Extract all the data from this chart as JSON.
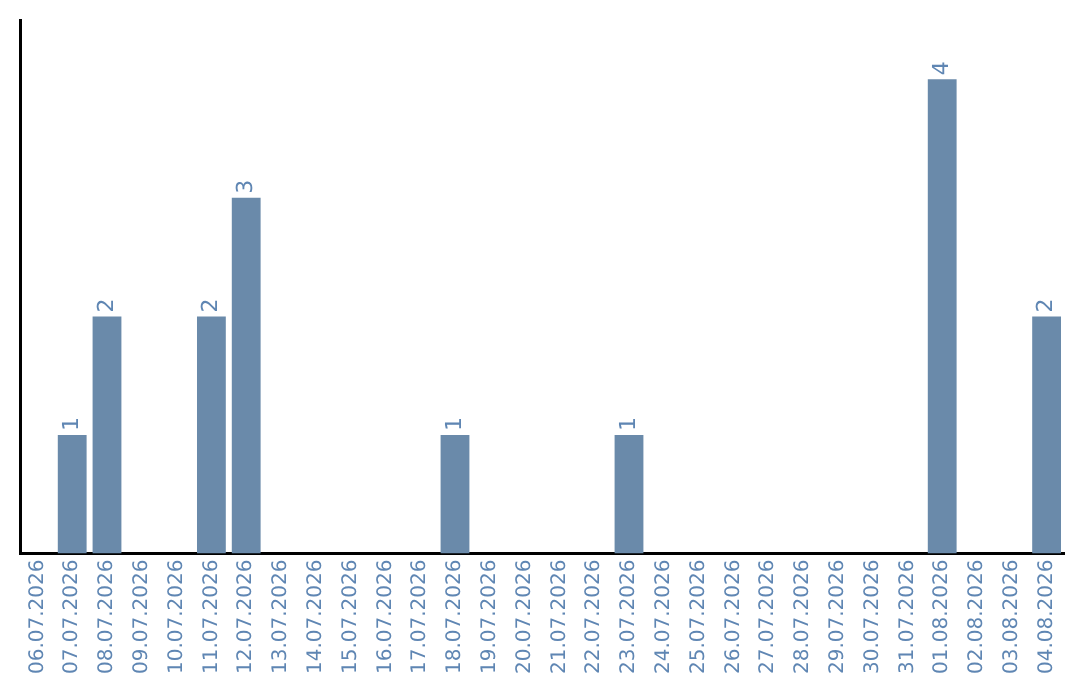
{
  "chart_data": {
    "type": "bar",
    "categories": [
      "06.07.2026",
      "07.07.2026",
      "08.07.2026",
      "09.07.2026",
      "10.07.2026",
      "11.07.2026",
      "12.07.2026",
      "13.07.2026",
      "14.07.2026",
      "15.07.2026",
      "16.07.2026",
      "17.07.2026",
      "18.07.2026",
      "19.07.2026",
      "20.07.2026",
      "21.07.2026",
      "22.07.2026",
      "23.07.2026",
      "24.07.2026",
      "25.07.2026",
      "26.07.2026",
      "27.07.2026",
      "28.07.2026",
      "29.07.2026",
      "30.07.2026",
      "31.07.2026",
      "01.08.2026",
      "02.08.2026",
      "03.08.2026",
      "04.08.2026"
    ],
    "values": [
      0,
      1,
      2,
      0,
      0,
      2,
      3,
      0,
      0,
      0,
      0,
      0,
      1,
      0,
      0,
      0,
      0,
      1,
      0,
      0,
      0,
      0,
      0,
      0,
      0,
      0,
      4,
      0,
      0,
      2
    ],
    "value_labels": [
      null,
      "1",
      "2",
      null,
      null,
      "2",
      "3",
      null,
      null,
      null,
      null,
      null,
      "1",
      null,
      null,
      null,
      null,
      "1",
      null,
      null,
      null,
      null,
      null,
      null,
      null,
      null,
      "4",
      null,
      null,
      "2"
    ],
    "color": "#6a8aaa",
    "grid": false,
    "legend": false,
    "tick_labels": "x"
  }
}
